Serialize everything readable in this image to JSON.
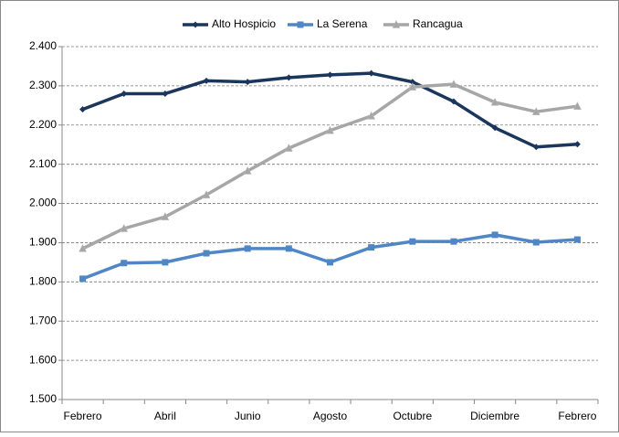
{
  "chart_data": {
    "type": "line",
    "categories": [
      "Febrero",
      null,
      "Abril",
      null,
      "Junio",
      null,
      "Agosto",
      null,
      "Octubre",
      null,
      "Diciembre",
      null,
      "Febrero"
    ],
    "series": [
      {
        "name": "Alto Hospicio",
        "color": "#1b365d",
        "marker": "diamond",
        "values": [
          2240,
          2280,
          2280,
          2313,
          2310,
          2321,
          2328,
          2332,
          2310,
          2260,
          2193,
          2144,
          2151
        ]
      },
      {
        "name": "La Serena",
        "color": "#4f86c6",
        "marker": "square",
        "values": [
          1808,
          1848,
          1850,
          1873,
          1885,
          1885,
          1850,
          1888,
          1903,
          1903,
          1920,
          1901,
          1908
        ]
      },
      {
        "name": "Rancagua",
        "color": "#a6a6a6",
        "marker": "triangle",
        "values": [
          1885,
          1936,
          1966,
          2022,
          2083,
          2141,
          2186,
          2223,
          2297,
          2304,
          2258,
          2234,
          2248
        ]
      }
    ],
    "ylim": [
      1500,
      2400
    ],
    "yticks": [
      {
        "value": 1500,
        "label": "1.500"
      },
      {
        "value": 1600,
        "label": "1.600"
      },
      {
        "value": 1700,
        "label": "1.700"
      },
      {
        "value": 1800,
        "label": "1.800"
      },
      {
        "value": 1900,
        "label": "1.900"
      },
      {
        "value": 2000,
        "label": "2.000"
      },
      {
        "value": 2100,
        "label": "2.100"
      },
      {
        "value": 2200,
        "label": "2.200"
      },
      {
        "value": 2300,
        "label": "2.300"
      },
      {
        "value": 2400,
        "label": "2.400"
      }
    ],
    "grid": true,
    "legend": "top"
  }
}
